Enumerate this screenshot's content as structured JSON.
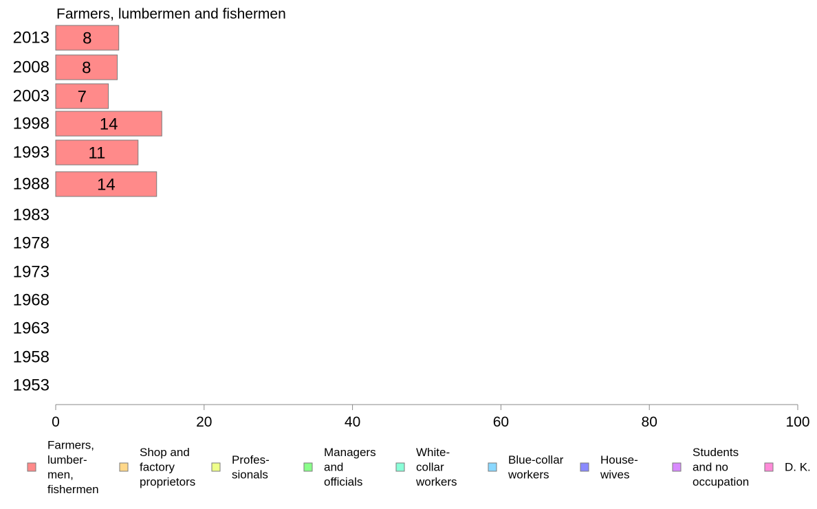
{
  "chart_data": {
    "type": "bar",
    "orientation": "horizontal",
    "title": "Farmers, lumbermen and fishermen",
    "categories": [
      "2013",
      "2008",
      "2003",
      "1998",
      "1993",
      "1988",
      "1983",
      "1978",
      "1973",
      "1968",
      "1963",
      "1958",
      "1953"
    ],
    "series": [
      {
        "name": "Farmers, lumber- men, fishermen",
        "color": "#ff8a8a",
        "values": [
          8.5,
          8.3,
          7.1,
          14.3,
          11.1,
          13.6,
          null,
          null,
          null,
          null,
          null,
          null,
          null
        ],
        "labels": [
          "8",
          "8",
          "7",
          "14",
          "11",
          "14",
          "",
          "",
          "",
          "",
          "",
          "",
          ""
        ]
      }
    ],
    "xlim": [
      0,
      100
    ],
    "xticks": [
      "0",
      "20",
      "40",
      "60",
      "80",
      "100"
    ],
    "grid": false,
    "legend": {
      "position": "bottom",
      "items": [
        {
          "lines": [
            "Farmers,",
            "lumber-",
            "men,",
            "fishermen"
          ],
          "color": "#ff8a8a"
        },
        {
          "lines": [
            "Shop and",
            "factory",
            "proprietors"
          ],
          "color": "#ffd88a"
        },
        {
          "lines": [
            "Profes-",
            "sionals"
          ],
          "color": "#eeff8a"
        },
        {
          "lines": [
            "Managers",
            "and",
            "officials"
          ],
          "color": "#8aff8a"
        },
        {
          "lines": [
            "White-",
            "collar",
            "workers"
          ],
          "color": "#8affd8"
        },
        {
          "lines": [
            "Blue-collar",
            "workers"
          ],
          "color": "#8ad8ff"
        },
        {
          "lines": [
            "House-",
            "wives"
          ],
          "color": "#8a8aff"
        },
        {
          "lines": [
            "Students",
            "and no",
            "occupation"
          ],
          "color": "#d88aff"
        },
        {
          "lines": [
            "D. K."
          ],
          "color": "#ff8ad8"
        }
      ]
    }
  }
}
